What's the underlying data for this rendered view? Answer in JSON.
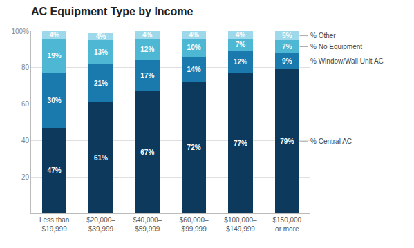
{
  "chart_data": {
    "type": "bar",
    "title": "AC Equipment Type by Income",
    "categories": [
      "Less than\n$19,999",
      "$20,000–\n$39,999",
      "$40,000–\n$59,999",
      "$60,000–\n$99,999",
      "$100,000–\n$149,999",
      "$150,000\nor more"
    ],
    "series": [
      {
        "name": "% Central AC",
        "color": "#0d3a5c",
        "values": [
          47,
          61,
          67,
          72,
          77,
          79
        ],
        "value_labels": [
          "47%",
          "61%",
          "67%",
          "72%",
          "77%",
          "79%"
        ]
      },
      {
        "name": "% Window/Wall Unit AC",
        "color": "#1a7aad",
        "values": [
          30,
          21,
          17,
          14,
          12,
          9
        ],
        "value_labels": [
          "30%",
          "21%",
          "17%",
          "14%",
          "12%",
          "9%"
        ]
      },
      {
        "name": "% No Equipment",
        "color": "#4eb8d4",
        "values": [
          19,
          13,
          12,
          10,
          7,
          7
        ],
        "value_labels": [
          "19%",
          "13%",
          "12%",
          "10%",
          "7%",
          "7%"
        ]
      },
      {
        "name": "% Other",
        "color": "#9dd9ea",
        "values": [
          4,
          4,
          4,
          4,
          4,
          5
        ],
        "value_labels": [
          "4%",
          "4%",
          "4%",
          "4%",
          "4%",
          "5%"
        ]
      }
    ],
    "stacked": true,
    "data_labels": true,
    "ylim": [
      0,
      100
    ],
    "yticks": [
      20,
      40,
      60,
      80,
      {
        "value": 100,
        "label": "100%"
      }
    ],
    "grid": true
  }
}
